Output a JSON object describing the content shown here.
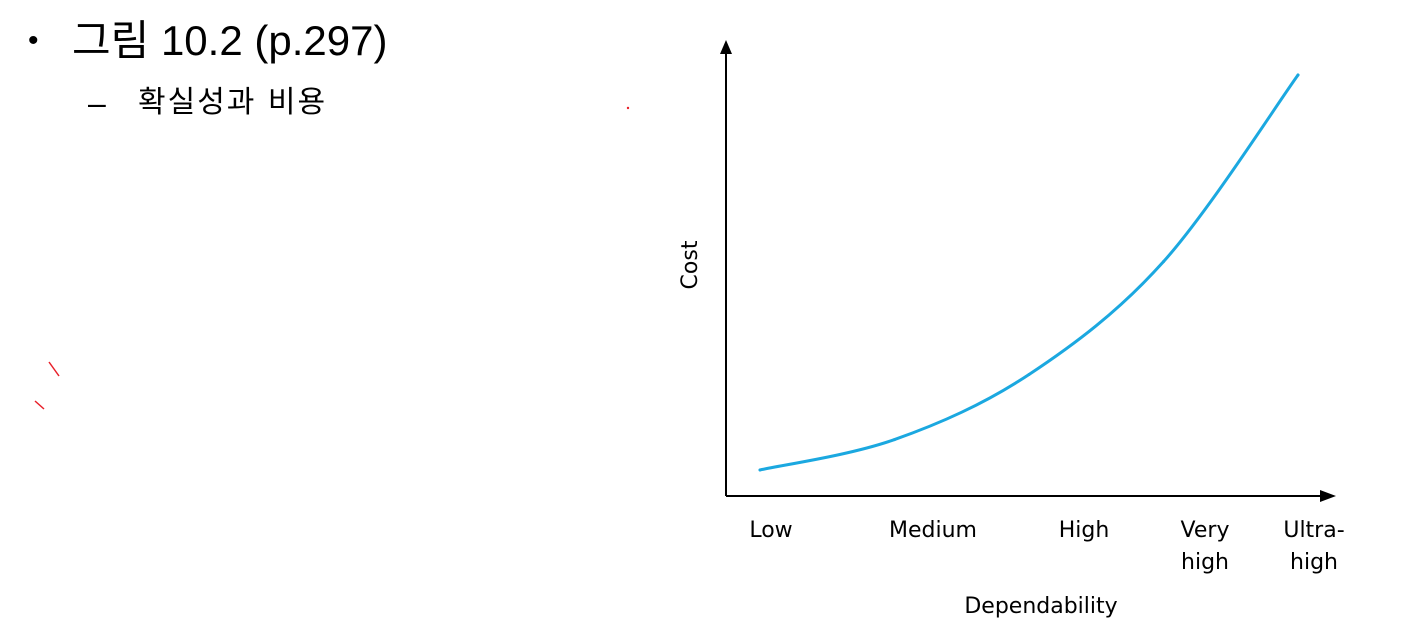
{
  "slide": {
    "bullet_symbol": "•",
    "heading": "그림 10.2 (p.297)",
    "sub_dash": "–",
    "subheading": "확실성과 비용"
  },
  "colors": {
    "curve": "#1BA8E0",
    "axis": "#000000",
    "ink_marks": "#E8202A"
  },
  "chart_data": {
    "type": "line",
    "title": "",
    "xlabel": "Dependability",
    "ylabel": "Cost",
    "categories": [
      "Low",
      "Medium",
      "High",
      "Very high",
      "Ultra-high"
    ],
    "category_lines": [
      [
        "Low"
      ],
      [
        "Medium"
      ],
      [
        "High"
      ],
      [
        "Very",
        "high"
      ],
      [
        "Ultra-",
        "high"
      ]
    ],
    "x": [
      0,
      1,
      2,
      3,
      4
    ],
    "y_ticks": [],
    "ylim": [
      0,
      100
    ],
    "grid": false,
    "legend": "none",
    "series": [
      {
        "values": [
          6,
          13,
          28,
          54,
          97
        ]
      }
    ],
    "axis_arrows": true
  }
}
